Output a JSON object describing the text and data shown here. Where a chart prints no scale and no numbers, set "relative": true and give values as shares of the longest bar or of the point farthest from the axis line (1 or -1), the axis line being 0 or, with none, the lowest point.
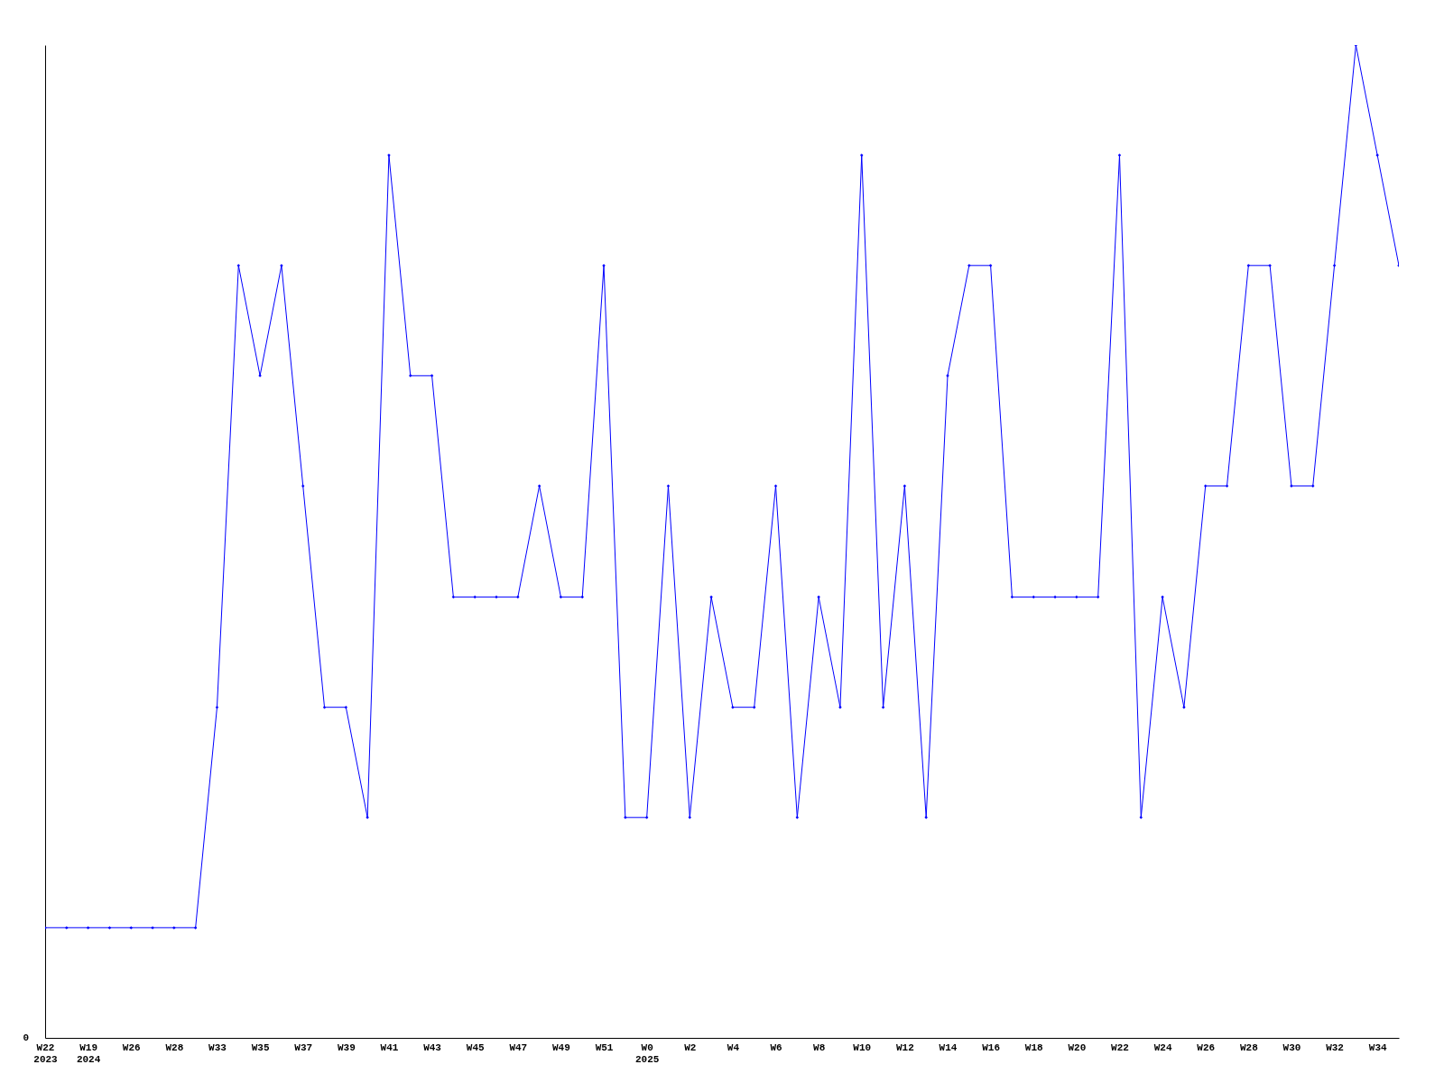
{
  "chart_data": {
    "type": "line",
    "relative": true,
    "marker": "diamond",
    "line_style": "solid",
    "categories": [
      "W22\n2023",
      null,
      "W19\n2024",
      null,
      "W26",
      null,
      "W28",
      null,
      "W33",
      null,
      "W35",
      null,
      "W37",
      null,
      "W39",
      null,
      "W41",
      null,
      "W43",
      null,
      "W45",
      null,
      "W47",
      null,
      "W49",
      null,
      "W51",
      null,
      "W0\n2025",
      null,
      "W2",
      null,
      "W4",
      null,
      "W6",
      null,
      "W8",
      null,
      "W10",
      null,
      "W12",
      null,
      "W14",
      null,
      "W16",
      null,
      "W18",
      null,
      "W20",
      null,
      "W22",
      null,
      "W24",
      null,
      "W26",
      null,
      "W28",
      null,
      "W30",
      null,
      "W32",
      null,
      "W34",
      null
    ],
    "series": [
      {
        "color": "#0000ff",
        "values": [
          0.111,
          0.111,
          0.111,
          0.111,
          0.111,
          0.111,
          0.111,
          0.111,
          0.333,
          0.778,
          0.667,
          0.778,
          0.556,
          0.333,
          0.333,
          0.222,
          0.889,
          0.667,
          0.667,
          0.444,
          0.444,
          0.444,
          0.444,
          0.556,
          0.444,
          0.444,
          0.778,
          0.222,
          0.222,
          0.556,
          0.222,
          0.444,
          0.333,
          0.333,
          0.556,
          0.222,
          0.444,
          0.333,
          0.889,
          0.333,
          0.556,
          0.222,
          0.667,
          0.778,
          0.778,
          0.444,
          0.444,
          0.444,
          0.444,
          0.444,
          0.889,
          0.222,
          0.444,
          0.333,
          0.556,
          0.556,
          0.778,
          0.778,
          0.556,
          0.556,
          0.778,
          1,
          0.889,
          0.778
        ]
      }
    ],
    "annotations": [
      "0"
    ]
  }
}
